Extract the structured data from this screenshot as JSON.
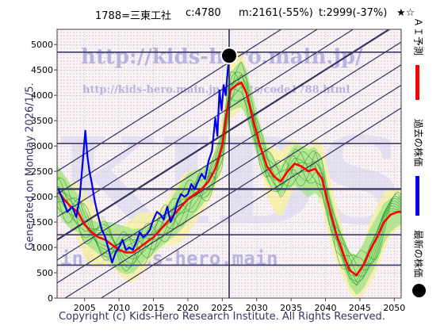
{
  "header": {
    "code": "1788=三東工社",
    "current": "c:4780",
    "m_value": "m:2161(-55%)",
    "t_value": "t:2999(-37%)",
    "stars": "★☆"
  },
  "side_note": "Generated on Monday 2026/1/5.",
  "copyright": "Copyright (c) Kids-Hero Research Institute. All Rights Reserved.",
  "watermarks": {
    "main": "http://kids-hero.main.jp/",
    "sub": "http://kids-hero.main.jp/charts/code1788.html",
    "big": "KIDS",
    "email": "info@kids-hero.main"
  },
  "legend": [
    {
      "label": "ＡＩ予測",
      "color": "#ff0000",
      "icon": "red-line"
    },
    {
      "label": "過去の株価",
      "color": "#0000ee",
      "icon": "blue-line"
    },
    {
      "label": "最新の株価",
      "color": "#000000",
      "icon": "black-dot"
    }
  ],
  "chart_data": {
    "type": "line",
    "xlim": [
      2001,
      2051
    ],
    "ylim": [
      0,
      5300
    ],
    "x_ticks": [
      2005,
      2010,
      2015,
      2020,
      2025,
      2030,
      2035,
      2040,
      2045,
      2050
    ],
    "y_ticks": [
      0,
      500,
      1000,
      1500,
      2000,
      2500,
      3000,
      3500,
      4000,
      4500,
      5000
    ],
    "grid": true,
    "series": [
      {
        "name": "過去の株価",
        "color": "#0000ee",
        "points": [
          [
            2001.2,
            2150
          ],
          [
            2001.8,
            1950
          ],
          [
            2002.5,
            1700
          ],
          [
            2003.2,
            1800
          ],
          [
            2003.8,
            1600
          ],
          [
            2004.3,
            2000
          ],
          [
            2004.8,
            2800
          ],
          [
            2005.1,
            3300
          ],
          [
            2005.4,
            2800
          ],
          [
            2005.7,
            2500
          ],
          [
            2006.0,
            2300
          ],
          [
            2006.5,
            1900
          ],
          [
            2007.0,
            1600
          ],
          [
            2007.5,
            1350
          ],
          [
            2008.0,
            1200
          ],
          [
            2008.5,
            950
          ],
          [
            2009.0,
            700
          ],
          [
            2009.5,
            900
          ],
          [
            2010.0,
            1000
          ],
          [
            2010.5,
            1150
          ],
          [
            2011.0,
            950
          ],
          [
            2011.5,
            1000
          ],
          [
            2012.0,
            950
          ],
          [
            2012.5,
            1100
          ],
          [
            2013.0,
            1300
          ],
          [
            2013.5,
            1200
          ],
          [
            2014.0,
            1250
          ],
          [
            2014.5,
            1350
          ],
          [
            2015.0,
            1550
          ],
          [
            2015.5,
            1700
          ],
          [
            2016.0,
            1650
          ],
          [
            2016.5,
            1550
          ],
          [
            2017.0,
            1800
          ],
          [
            2017.5,
            1500
          ],
          [
            2018.0,
            1650
          ],
          [
            2018.5,
            1900
          ],
          [
            2019.0,
            2050
          ],
          [
            2019.5,
            2000
          ],
          [
            2020.0,
            2050
          ],
          [
            2020.5,
            2250
          ],
          [
            2021.0,
            2150
          ],
          [
            2021.5,
            2300
          ],
          [
            2022.0,
            2450
          ],
          [
            2022.5,
            2350
          ],
          [
            2023.0,
            2700
          ],
          [
            2023.5,
            2900
          ],
          [
            2024.0,
            3550
          ],
          [
            2024.3,
            3200
          ],
          [
            2024.6,
            4100
          ],
          [
            2024.9,
            3700
          ],
          [
            2025.2,
            4200
          ],
          [
            2025.5,
            4000
          ],
          [
            2025.8,
            4500
          ],
          [
            2026.0,
            4780
          ]
        ]
      },
      {
        "name": "ＡＩ予測",
        "color": "#ff0000",
        "points": [
          [
            2001.2,
            2100
          ],
          [
            2002.0,
            1950
          ],
          [
            2003.0,
            1800
          ],
          [
            2004.0,
            1700
          ],
          [
            2005.0,
            1450
          ],
          [
            2006.0,
            1300
          ],
          [
            2007.0,
            1200
          ],
          [
            2008.0,
            1150
          ],
          [
            2009.0,
            1050
          ],
          [
            2010.0,
            950
          ],
          [
            2011.0,
            900
          ],
          [
            2012.0,
            900
          ],
          [
            2013.0,
            1000
          ],
          [
            2014.0,
            1100
          ],
          [
            2015.0,
            1200
          ],
          [
            2016.0,
            1350
          ],
          [
            2017.0,
            1500
          ],
          [
            2018.0,
            1650
          ],
          [
            2019.0,
            1800
          ],
          [
            2020.0,
            1950
          ],
          [
            2021.0,
            2050
          ],
          [
            2022.0,
            2150
          ],
          [
            2023.0,
            2300
          ],
          [
            2024.0,
            2550
          ],
          [
            2025.0,
            3000
          ],
          [
            2025.6,
            3600
          ],
          [
            2026.2,
            4100
          ],
          [
            2027.0,
            4200
          ],
          [
            2027.8,
            4250
          ],
          [
            2028.5,
            4050
          ],
          [
            2029.5,
            3500
          ],
          [
            2030.5,
            3000
          ],
          [
            2031.5,
            2600
          ],
          [
            2032.5,
            2400
          ],
          [
            2033.5,
            2300
          ],
          [
            2034.5,
            2500
          ],
          [
            2035.5,
            2650
          ],
          [
            2036.5,
            2600
          ],
          [
            2037.5,
            2500
          ],
          [
            2038.5,
            2550
          ],
          [
            2039.5,
            2350
          ],
          [
            2040.5,
            1800
          ],
          [
            2041.5,
            1300
          ],
          [
            2042.5,
            900
          ],
          [
            2043.5,
            550
          ],
          [
            2044.5,
            450
          ],
          [
            2045.5,
            650
          ],
          [
            2046.5,
            950
          ],
          [
            2047.5,
            1200
          ],
          [
            2048.5,
            1500
          ],
          [
            2049.5,
            1650
          ],
          [
            2050.5,
            1700
          ],
          [
            2051.0,
            1700
          ]
        ]
      }
    ],
    "latest": {
      "x": 2026.0,
      "y": 4780
    },
    "horizontal_lines": [
      650,
      1250,
      2150,
      3050,
      4850
    ],
    "crosshair": {
      "x": 2026.0,
      "y": 2150
    }
  }
}
